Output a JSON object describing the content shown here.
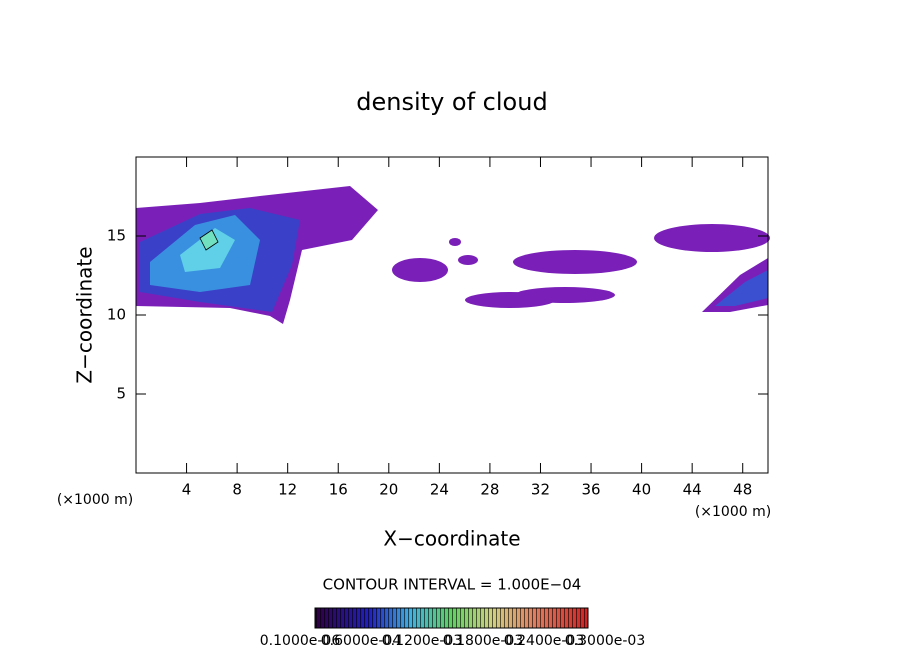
{
  "chart_data": {
    "type": "contour",
    "title": "density of cloud",
    "x_label": "X−coordinate",
    "y_label": "Z−coordinate",
    "x_unit_label": "(×1000 m)",
    "y_unit_label": "(×1000 m)",
    "xlim": [
      0,
      50
    ],
    "ylim": [
      0,
      20
    ],
    "xticks": [
      4,
      8,
      12,
      16,
      20,
      24,
      28,
      32,
      36,
      40,
      44,
      48
    ],
    "yticks": [
      5,
      10,
      15
    ],
    "contour_interval_label": "CONTOUR INTERVAL = 1.000E−04",
    "colorbar_labels": [
      "0.1000e-06",
      "0.6000e-04",
      "0.1200e-03",
      "0.1800e-03",
      "0.2400e-03",
      "0.3000e-03"
    ]
  }
}
